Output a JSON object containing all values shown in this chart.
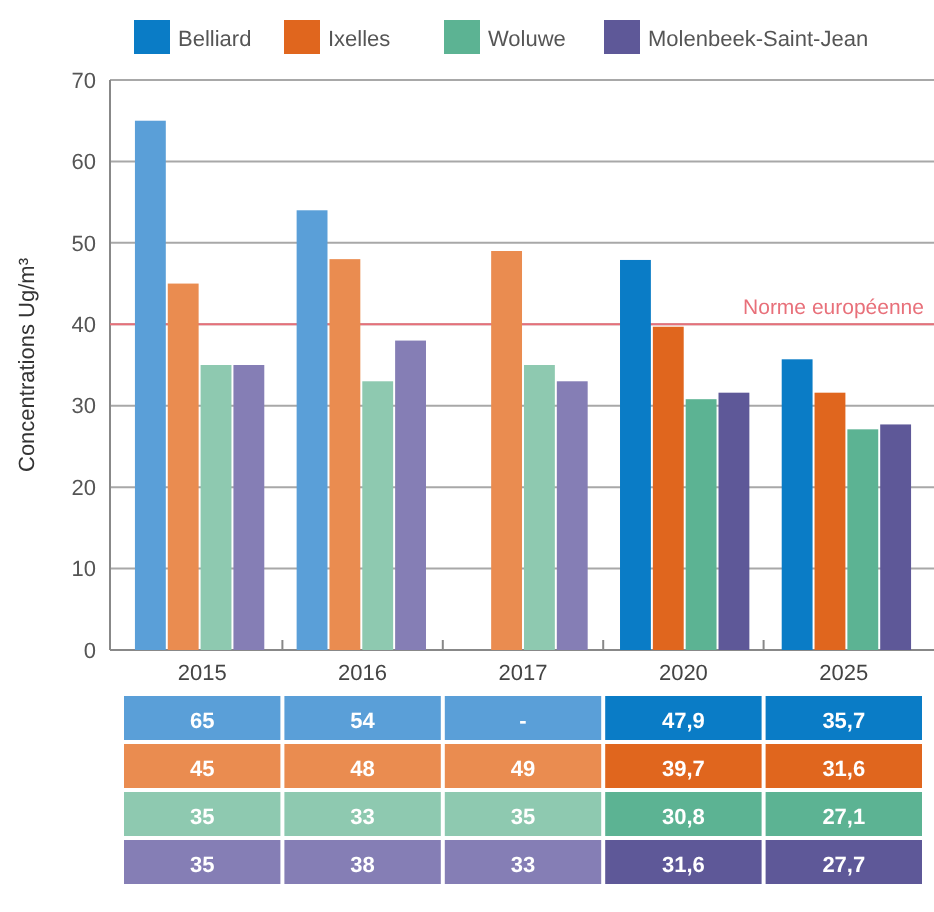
{
  "chart_data": {
    "type": "bar",
    "ylabel": "Concentrations Ug/m³",
    "categories": [
      "2015",
      "2016",
      "2017",
      "2020",
      "2025"
    ],
    "series": [
      {
        "name": "Belliard",
        "color": "#0a7cc6",
        "colors": [
          "#5a9fd8",
          "#5a9fd8",
          "#5a9fd8",
          "#0a7cc6",
          "#0a7cc6"
        ],
        "values": [
          65,
          54,
          null,
          47.9,
          35.7
        ],
        "value_labels": [
          "65",
          "54",
          "-",
          "47,9",
          "35,7"
        ]
      },
      {
        "name": "Ixelles",
        "color": "#e0661e",
        "colors": [
          "#ea8c50",
          "#ea8c50",
          "#ea8c50",
          "#e0661e",
          "#e0661e"
        ],
        "values": [
          45,
          48,
          49,
          39.7,
          31.6
        ],
        "value_labels": [
          "45",
          "48",
          "49",
          "39,7",
          "31,6"
        ]
      },
      {
        "name": "Woluwe",
        "color": "#5cb393",
        "colors": [
          "#8ec9b0",
          "#8ec9b0",
          "#8ec9b0",
          "#5cb393",
          "#5cb393"
        ],
        "values": [
          35,
          33,
          35,
          30.8,
          27.1
        ],
        "value_labels": [
          "35",
          "33",
          "35",
          "30,8",
          "27,1"
        ]
      },
      {
        "name": "Molenbeek-Saint-Jean",
        "color": "#5e5898",
        "colors": [
          "#857eb5",
          "#857eb5",
          "#857eb5",
          "#5e5898",
          "#5e5898"
        ],
        "values": [
          35,
          38,
          33,
          31.6,
          27.7
        ],
        "value_labels": [
          "35",
          "38",
          "33",
          "31,6",
          "27,7"
        ]
      }
    ],
    "ylim": [
      0,
      70
    ],
    "yticks": [
      0,
      10,
      20,
      30,
      40,
      50,
      60,
      70
    ],
    "grid": "y",
    "legend": "top",
    "ref_lines": [
      {
        "axis": "y",
        "value": 40,
        "label": "Norme européenne",
        "color": "#e8707a"
      }
    ]
  }
}
